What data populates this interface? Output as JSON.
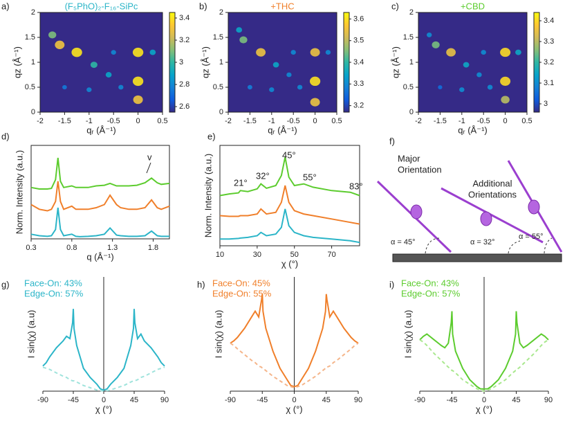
{
  "chart_data": [
    {
      "type": "heatmap",
      "panel": "a)",
      "title": "(F₅PhO)₂-F₁₆-SiPc",
      "title_color": "#2bb5c8",
      "xlabel": "qᵣ (Å⁻¹)",
      "ylabel": "qz (Å⁻¹)",
      "xlim": [
        -2,
        0.5
      ],
      "xticks": [
        -2,
        -1.5,
        -1,
        -0.5,
        0,
        0.5
      ],
      "ylim": [
        0,
        2
      ],
      "yticks": [
        0,
        0.5,
        1,
        1.5,
        2
      ],
      "clim": [
        2.55,
        3.45
      ],
      "cticks": [
        2.6,
        2.8,
        3,
        3.2,
        3.4
      ],
      "peaks": [
        [
          -1.6,
          1.35,
          3.3
        ],
        [
          -1.75,
          1.55,
          3.1
        ],
        [
          -1.25,
          1.2,
          3.4
        ],
        [
          -0.9,
          0.95,
          3.0
        ],
        [
          -0.6,
          0.75,
          2.9
        ],
        [
          -0.5,
          1.2,
          2.8
        ],
        [
          0,
          1.2,
          3.4
        ],
        [
          0,
          0.62,
          3.4
        ],
        [
          0,
          0.25,
          3.3
        ],
        [
          -0.35,
          0.5,
          2.8
        ],
        [
          -1.0,
          0.45,
          2.8
        ],
        [
          -1.5,
          0.5,
          2.75
        ],
        [
          0.3,
          1.2,
          2.9
        ]
      ]
    },
    {
      "type": "heatmap",
      "panel": "b)",
      "title": "+THC",
      "title_color": "#f07f2a",
      "xlabel": "qᵣ (Å⁻¹)",
      "ylabel": "qz (Å⁻¹)",
      "xlim": [
        -2,
        0.5
      ],
      "xticks": [
        -2,
        -1.5,
        -1,
        -0.5,
        0,
        0.5
      ],
      "ylim": [
        0,
        2
      ],
      "yticks": [
        0,
        0.5,
        1,
        1.5,
        2
      ],
      "clim": [
        3.17,
        3.63
      ],
      "cticks": [
        3.2,
        3.3,
        3.4,
        3.5,
        3.6
      ],
      "peaks": [
        [
          -1.65,
          1.45,
          3.45
        ],
        [
          -1.75,
          1.65,
          3.35
        ],
        [
          -1.25,
          1.2,
          3.55
        ],
        [
          -0.9,
          0.95,
          3.35
        ],
        [
          -0.6,
          0.75,
          3.3
        ],
        [
          -0.5,
          1.2,
          3.3
        ],
        [
          0,
          1.2,
          3.55
        ],
        [
          0,
          0.62,
          3.6
        ],
        [
          0,
          0.2,
          3.55
        ],
        [
          -0.35,
          0.5,
          3.3
        ],
        [
          -1.0,
          0.45,
          3.3
        ],
        [
          -1.5,
          0.5,
          3.28
        ],
        [
          0.3,
          1.2,
          3.3
        ]
      ]
    },
    {
      "type": "heatmap",
      "panel": "c)",
      "title": "+CBD",
      "title_color": "#5ccc2e",
      "xlabel": "qᵣ (Å⁻¹)",
      "ylabel": "qz (Å⁻¹)",
      "xlim": [
        -2,
        0.5
      ],
      "xticks": [
        -2,
        -1.5,
        -1,
        -0.5,
        0,
        0.5
      ],
      "ylim": [
        0,
        2
      ],
      "yticks": [
        0,
        0.5,
        1,
        1.5,
        2
      ],
      "clim": [
        2.96,
        3.44
      ],
      "cticks": [
        3,
        3.1,
        3.2,
        3.3,
        3.4
      ],
      "peaks": [
        [
          -1.6,
          1.35,
          3.25
        ],
        [
          -1.75,
          1.55,
          3.1
        ],
        [
          -1.25,
          1.2,
          3.35
        ],
        [
          -0.9,
          0.95,
          3.15
        ],
        [
          -0.6,
          0.75,
          3.1
        ],
        [
          -0.5,
          1.2,
          3.1
        ],
        [
          0,
          1.2,
          3.4
        ],
        [
          0,
          0.62,
          3.4
        ],
        [
          0,
          0.25,
          3.3
        ],
        [
          -0.35,
          0.5,
          3.1
        ],
        [
          -1.0,
          0.45,
          3.1
        ],
        [
          -1.5,
          0.5,
          3.05
        ],
        [
          0.3,
          1.2,
          3.15
        ]
      ]
    },
    {
      "type": "line",
      "panel": "d)",
      "xlabel": "q (Å⁻¹)",
      "ylabel": "Norm. Intensity (a.u.)",
      "annotations": [
        "v"
      ],
      "xlim": [
        0.3,
        2.0
      ],
      "xticks": [
        0.3,
        0.8,
        1.3,
        1.8
      ],
      "ylim": [
        0,
        3
      ],
      "x": [
        0.3,
        0.4,
        0.5,
        0.55,
        0.6,
        0.63,
        0.66,
        0.7,
        0.8,
        0.85,
        0.9,
        1.0,
        1.1,
        1.2,
        1.27,
        1.35,
        1.4,
        1.5,
        1.6,
        1.7,
        1.78,
        1.85,
        1.9,
        2.0
      ],
      "series": [
        {
          "color": "#2bb5c8",
          "values": [
            0.15,
            0.1,
            0.08,
            0.1,
            0.3,
            1.0,
            0.3,
            0.1,
            0.15,
            0.08,
            0.07,
            0.08,
            0.1,
            0.15,
            0.35,
            0.12,
            0.1,
            0.08,
            0.08,
            0.1,
            0.25,
            0.1,
            0.08,
            0.08
          ]
        },
        {
          "color": "#f07f2a",
          "values": [
            1.1,
            0.95,
            0.9,
            0.95,
            1.2,
            1.85,
            1.2,
            0.95,
            1.05,
            0.95,
            0.95,
            0.95,
            1.0,
            1.1,
            1.4,
            1.1,
            1.0,
            0.95,
            0.95,
            1.0,
            1.25,
            1.0,
            0.95,
            1.05
          ]
        },
        {
          "color": "#5ccc2e",
          "values": [
            1.65,
            1.6,
            1.6,
            1.62,
            1.9,
            2.6,
            1.85,
            1.65,
            1.7,
            1.65,
            1.65,
            1.65,
            1.7,
            1.72,
            1.78,
            1.7,
            1.7,
            1.7,
            1.72,
            1.8,
            1.95,
            1.8,
            1.75,
            1.78
          ]
        }
      ]
    },
    {
      "type": "line",
      "panel": "e)",
      "xlabel": "χ (°)",
      "ylabel": "Norm. Intensity (a.u.)",
      "annotations": [
        "21°",
        "32°",
        "45°",
        "55°",
        "83°"
      ],
      "xlim": [
        10,
        85
      ],
      "xticks": [
        10,
        30,
        50,
        70
      ],
      "ylim": [
        0,
        3
      ],
      "x": [
        10,
        15,
        20,
        21,
        25,
        30,
        32,
        35,
        40,
        43,
        45,
        47,
        50,
        55,
        60,
        70,
        80,
        85
      ],
      "series": [
        {
          "color": "#2bb5c8",
          "values": [
            0.2,
            0.2,
            0.22,
            0.23,
            0.25,
            0.3,
            0.4,
            0.3,
            0.35,
            0.55,
            1.1,
            0.6,
            0.4,
            0.3,
            0.25,
            0.2,
            0.15,
            0.1
          ]
        },
        {
          "color": "#f07f2a",
          "values": [
            0.9,
            0.88,
            0.88,
            0.9,
            0.9,
            0.95,
            1.1,
            0.95,
            1.0,
            1.3,
            1.8,
            1.3,
            1.05,
            0.95,
            0.9,
            0.8,
            0.7,
            0.65
          ]
        },
        {
          "color": "#5ccc2e",
          "values": [
            1.5,
            1.55,
            1.58,
            1.65,
            1.62,
            1.7,
            1.85,
            1.72,
            1.8,
            2.1,
            2.65,
            2.05,
            1.8,
            1.85,
            1.75,
            1.65,
            1.6,
            1.5
          ]
        }
      ]
    },
    {
      "type": "polefigure",
      "panel": "g)",
      "xlabel": "χ (°)",
      "ylabel": "I sin(χ) (a.u)",
      "annotations": [
        "Face-On: 43%",
        "Edge-On: 57%"
      ],
      "xlim": [
        -90,
        90
      ],
      "xticks": [
        -90,
        -45,
        0,
        45,
        90
      ],
      "ylim": [
        0,
        1
      ],
      "x": [
        -90,
        -85,
        -80,
        -70,
        -60,
        -55,
        -50,
        -46,
        -45,
        -44,
        -40,
        -30,
        -20,
        -10,
        -5,
        0,
        5,
        10,
        20,
        30,
        40,
        44,
        45,
        46,
        50,
        55,
        60,
        70,
        80,
        85,
        90
      ],
      "series": [
        {
          "color": "#2bb5c8",
          "values": [
            0.22,
            0.25,
            0.3,
            0.38,
            0.44,
            0.48,
            0.46,
            0.6,
            0.72,
            0.55,
            0.4,
            0.2,
            0.12,
            0.06,
            0.02,
            0.01,
            0.02,
            0.06,
            0.12,
            0.2,
            0.4,
            0.55,
            0.72,
            0.6,
            0.46,
            0.5,
            0.44,
            0.38,
            0.3,
            0.25,
            0.22
          ]
        },
        {
          "color": "#9fe3dc",
          "dash": true,
          "values": [
            0.21,
            0.2,
            0.19,
            0.16,
            0.13,
            0.12,
            0.1,
            0.09,
            0.09,
            0.09,
            0.08,
            0.05,
            0.03,
            0.01,
            0.005,
            0,
            0.005,
            0.01,
            0.03,
            0.05,
            0.08,
            0.09,
            0.09,
            0.09,
            0.1,
            0.12,
            0.13,
            0.16,
            0.19,
            0.2,
            0.21
          ]
        }
      ]
    },
    {
      "type": "polefigure",
      "panel": "h)",
      "xlabel": "χ (°)",
      "ylabel": "I sin(χ) (a.u)",
      "annotations": [
        "Face-On: 45%",
        "Edge-On: 55%"
      ],
      "xlim": [
        -90,
        90
      ],
      "xticks": [
        -90,
        -45,
        0,
        45,
        90
      ],
      "ylim": [
        0,
        1
      ],
      "x": [
        -90,
        -85,
        -80,
        -70,
        -60,
        -55,
        -50,
        -46,
        -45,
        -44,
        -40,
        -30,
        -20,
        -10,
        -5,
        0,
        5,
        10,
        20,
        30,
        40,
        44,
        45,
        46,
        50,
        55,
        60,
        70,
        80,
        85,
        90
      ],
      "series": [
        {
          "color": "#f07f2a",
          "values": [
            0.42,
            0.44,
            0.47,
            0.55,
            0.65,
            0.7,
            0.65,
            0.8,
            0.85,
            0.7,
            0.55,
            0.35,
            0.2,
            0.1,
            0.05,
            0.04,
            0.05,
            0.1,
            0.2,
            0.35,
            0.55,
            0.7,
            0.85,
            0.8,
            0.65,
            0.7,
            0.65,
            0.55,
            0.47,
            0.44,
            0.42
          ]
        },
        {
          "color": "#f5b58a",
          "dash": true,
          "values": [
            0.42,
            0.4,
            0.37,
            0.32,
            0.27,
            0.25,
            0.22,
            0.21,
            0.2,
            0.2,
            0.18,
            0.13,
            0.09,
            0.05,
            0.04,
            0.03,
            0.04,
            0.05,
            0.09,
            0.13,
            0.18,
            0.2,
            0.2,
            0.21,
            0.22,
            0.25,
            0.27,
            0.32,
            0.37,
            0.4,
            0.42
          ]
        }
      ]
    },
    {
      "type": "polefigure",
      "panel": "i)",
      "xlabel": "χ (°)",
      "ylabel": "I sin(χ) (a.u)",
      "annotations": [
        "Face-On: 43%",
        "Edge-On: 57%"
      ],
      "xlim": [
        -90,
        90
      ],
      "xticks": [
        -90,
        -45,
        0,
        45,
        90
      ],
      "ylim": [
        0,
        1
      ],
      "x": [
        -90,
        -85,
        -80,
        -70,
        -60,
        -55,
        -50,
        -46,
        -45,
        -44,
        -40,
        -30,
        -20,
        -10,
        -5,
        0,
        5,
        10,
        20,
        30,
        40,
        44,
        45,
        46,
        50,
        55,
        60,
        70,
        80,
        85,
        90
      ],
      "series": [
        {
          "color": "#5ccc2e",
          "values": [
            0.45,
            0.48,
            0.5,
            0.45,
            0.4,
            0.38,
            0.42,
            0.6,
            0.7,
            0.5,
            0.35,
            0.2,
            0.1,
            0.04,
            0.02,
            0.02,
            0.02,
            0.04,
            0.1,
            0.2,
            0.35,
            0.5,
            0.7,
            0.6,
            0.42,
            0.38,
            0.4,
            0.45,
            0.5,
            0.48,
            0.45
          ]
        },
        {
          "color": "#a9e88e",
          "dash": true,
          "values": [
            0.45,
            0.43,
            0.4,
            0.33,
            0.27,
            0.24,
            0.21,
            0.19,
            0.18,
            0.18,
            0.16,
            0.1,
            0.06,
            0.02,
            0.01,
            0,
            0.01,
            0.02,
            0.06,
            0.1,
            0.16,
            0.18,
            0.18,
            0.19,
            0.21,
            0.24,
            0.27,
            0.33,
            0.4,
            0.43,
            0.45
          ]
        }
      ]
    }
  ],
  "diagram": {
    "panel": "f)",
    "labels": [
      "Major",
      "Orientation",
      "Additional",
      "Orientations"
    ],
    "angles": [
      "α = 45°",
      "α = 32°",
      "α = 55°"
    ]
  }
}
